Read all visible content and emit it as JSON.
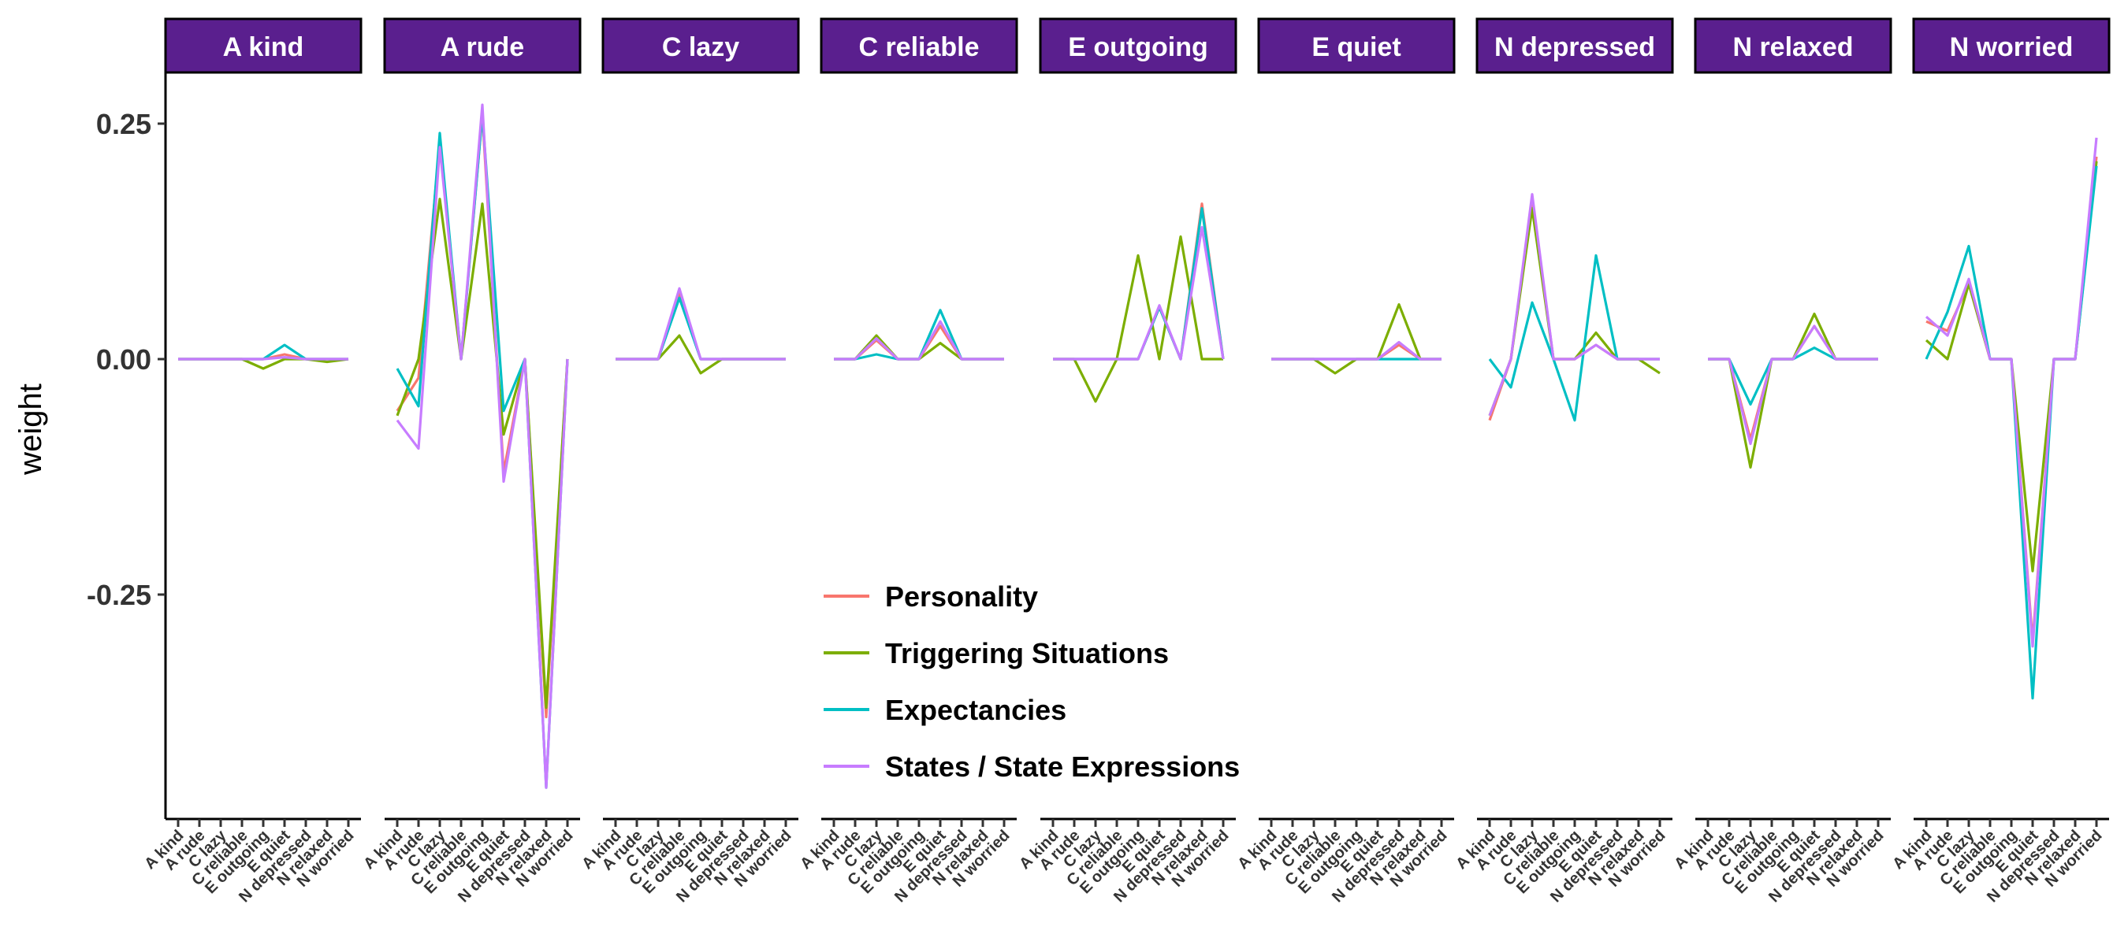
{
  "chart_data": {
    "type": "line",
    "ylabel": "weight",
    "xlabel": "",
    "ylim": [
      -0.49,
      0.3
    ],
    "yticks": [
      0.25,
      0.0,
      -0.25
    ],
    "ytick_labels": [
      "0.25",
      "0.00",
      "-0.25"
    ],
    "facets": [
      "A kind",
      "A rude",
      "C lazy",
      "C reliable",
      "E outgoing",
      "E quiet",
      "N depressed",
      "N relaxed",
      "N worried"
    ],
    "x": [
      "A kind",
      "A rude",
      "C lazy",
      "C reliable",
      "E outgoing",
      "E quiet",
      "N depressed",
      "N relaxed",
      "N worried"
    ],
    "legend_position": "inside-bottom-center",
    "grid": false,
    "series": [
      {
        "name": "Personality",
        "color": "#F8766D",
        "values": [
          [
            0,
            0,
            0,
            0,
            0,
            0.005,
            0,
            0,
            0
          ],
          [
            -0.055,
            -0.02,
            0.23,
            0,
            0.26,
            -0.12,
            0,
            -0.38,
            0
          ],
          [
            0,
            0,
            0,
            0.07,
            0,
            0,
            0,
            0,
            0
          ],
          [
            0,
            0,
            0.02,
            0,
            0,
            0.035,
            0,
            0,
            0
          ],
          [
            0,
            0,
            0,
            0,
            0,
            0.055,
            0,
            0.165,
            0
          ],
          [
            0,
            0,
            0,
            0,
            0,
            0,
            0.015,
            0,
            0
          ],
          [
            -0.065,
            0,
            0.17,
            0,
            0,
            0.015,
            0,
            0,
            0
          ],
          [
            0,
            0,
            -0.085,
            0,
            0,
            0.035,
            0,
            0,
            0
          ],
          [
            0.04,
            0.03,
            0.08,
            0,
            0,
            -0.3,
            0,
            0,
            0.215
          ]
        ]
      },
      {
        "name": "Triggering Situations",
        "color": "#7CAE00",
        "values": [
          [
            0,
            0,
            0,
            0,
            -0.01,
            0,
            0,
            -0.003,
            0
          ],
          [
            -0.06,
            0,
            0.17,
            0,
            0.165,
            -0.08,
            0,
            -0.37,
            0
          ],
          [
            0,
            0,
            0,
            0.025,
            -0.015,
            0,
            0,
            0,
            0
          ],
          [
            0,
            0,
            0.025,
            0,
            0,
            0.017,
            0,
            0,
            0
          ],
          [
            0,
            0,
            -0.045,
            0,
            0.11,
            0,
            0.13,
            0,
            0
          ],
          [
            0,
            0,
            0,
            -0.015,
            0,
            0,
            0.058,
            0,
            0
          ],
          [
            -0.06,
            0,
            0.16,
            0,
            0,
            0.028,
            0,
            0,
            -0.015
          ],
          [
            0,
            0,
            -0.115,
            0,
            0,
            0.048,
            0,
            0,
            0
          ],
          [
            0.02,
            0,
            0.08,
            0,
            0,
            -0.225,
            0,
            0,
            0.21
          ]
        ]
      },
      {
        "name": "Expectancies",
        "color": "#00BFC4",
        "values": [
          [
            0,
            0,
            0,
            0,
            0,
            0.015,
            0,
            0,
            0
          ],
          [
            -0.01,
            -0.05,
            0.24,
            0,
            0.26,
            -0.055,
            0,
            -0.455,
            0
          ],
          [
            0,
            0,
            0,
            0.065,
            0,
            0,
            0,
            0,
            0
          ],
          [
            0,
            0,
            0.005,
            0,
            0,
            0.052,
            0,
            0,
            0
          ],
          [
            0,
            0,
            0,
            0,
            0,
            0.055,
            0,
            0.16,
            0
          ],
          [
            0,
            0,
            0,
            0,
            0,
            0,
            0,
            0,
            0
          ],
          [
            0,
            -0.03,
            0.06,
            0,
            -0.065,
            0.11,
            0,
            0,
            0
          ],
          [
            0,
            0,
            -0.048,
            0,
            0,
            0.012,
            0,
            0,
            0
          ],
          [
            0,
            0.05,
            0.12,
            0,
            0,
            -0.36,
            0,
            0,
            0.205
          ]
        ]
      },
      {
        "name": "States / State Expressions",
        "color": "#C77CFF",
        "values": [
          [
            0,
            0,
            0,
            0,
            0,
            0.002,
            0,
            0,
            0
          ],
          [
            -0.065,
            -0.095,
            0.225,
            0,
            0.27,
            -0.13,
            0,
            -0.455,
            0
          ],
          [
            0,
            0,
            0,
            0.075,
            0,
            0,
            0,
            0,
            0
          ],
          [
            0,
            0,
            0.022,
            0,
            0,
            0.04,
            0,
            0,
            0
          ],
          [
            0,
            0,
            0,
            0,
            0,
            0.057,
            0,
            0.14,
            0
          ],
          [
            0,
            0,
            0,
            0,
            0,
            0,
            0.018,
            0,
            0
          ],
          [
            -0.06,
            0,
            0.175,
            0,
            0,
            0.015,
            0,
            0,
            0
          ],
          [
            0,
            0,
            -0.09,
            0,
            0,
            0.035,
            0,
            0,
            0
          ],
          [
            0.045,
            0.025,
            0.085,
            0,
            0,
            -0.305,
            0,
            0,
            0.235
          ]
        ]
      }
    ]
  }
}
